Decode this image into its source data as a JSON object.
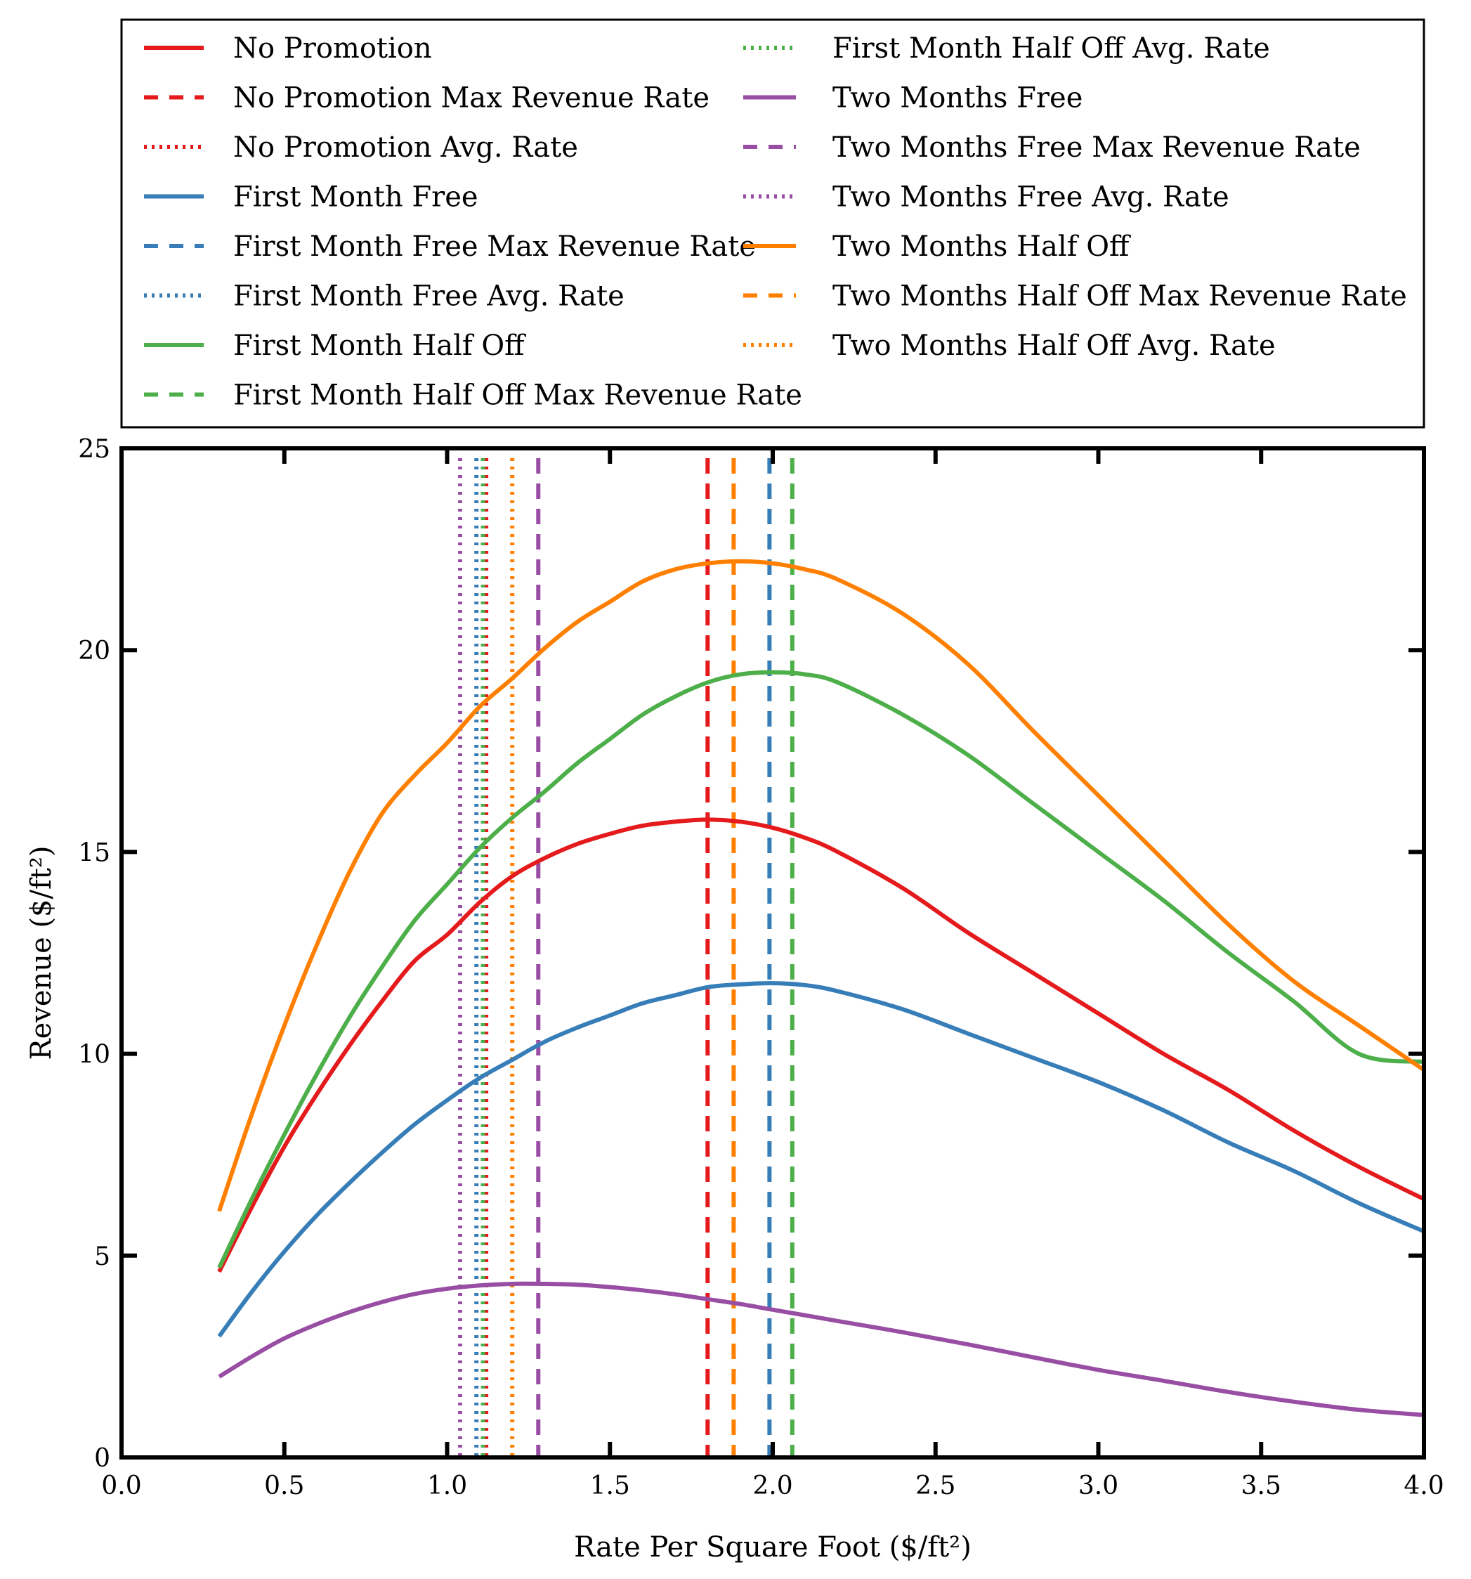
{
  "chart_data": {
    "type": "line",
    "title": "",
    "xlabel": "Rate Per Square Foot ($/ft²)",
    "ylabel": "Revenue ($/ft²)",
    "xlim": [
      0.0,
      4.0
    ],
    "ylim": [
      0,
      25
    ],
    "x_ticks": [
      "0.0",
      "0.5",
      "1.0",
      "1.5",
      "2.0",
      "2.5",
      "3.0",
      "3.5",
      "4.0"
    ],
    "y_ticks": [
      "0",
      "5",
      "10",
      "15",
      "20",
      "25"
    ],
    "grid": false,
    "legend_position": "top",
    "series": [
      {
        "name": "No Promotion",
        "color": "#e41a1c",
        "x": [
          0.3,
          0.4,
          0.5,
          0.6,
          0.7,
          0.8,
          0.9,
          1.0,
          1.1,
          1.2,
          1.3,
          1.4,
          1.5,
          1.6,
          1.7,
          1.8,
          1.9,
          2.0,
          2.1,
          2.2,
          2.4,
          2.6,
          2.8,
          3.0,
          3.2,
          3.4,
          3.6,
          3.8,
          4.0
        ],
        "y": [
          4.6,
          6.2,
          7.7,
          9.0,
          10.2,
          11.3,
          12.3,
          12.95,
          13.75,
          14.4,
          14.85,
          15.2,
          15.45,
          15.65,
          15.75,
          15.8,
          15.75,
          15.6,
          15.35,
          15.0,
          14.1,
          13.0,
          12.0,
          11.0,
          10.0,
          9.1,
          8.1,
          7.2,
          6.4
        ]
      },
      {
        "name": "No Promotion Max Revenue Rate",
        "color": "#e41a1c",
        "style": "dashed",
        "x": 1.8
      },
      {
        "name": "No Promotion Avg. Rate",
        "color": "#e41a1c",
        "style": "dotted",
        "x": 1.12
      },
      {
        "name": "First Month Free",
        "color": "#377eb8",
        "x": [
          0.3,
          0.4,
          0.5,
          0.6,
          0.7,
          0.8,
          0.9,
          1.0,
          1.1,
          1.2,
          1.3,
          1.4,
          1.5,
          1.6,
          1.7,
          1.8,
          1.9,
          2.0,
          2.1,
          2.2,
          2.4,
          2.6,
          2.8,
          3.0,
          3.2,
          3.4,
          3.6,
          3.8,
          4.0
        ],
        "y": [
          3.0,
          4.1,
          5.1,
          6.0,
          6.8,
          7.55,
          8.25,
          8.85,
          9.4,
          9.85,
          10.3,
          10.65,
          10.95,
          11.25,
          11.45,
          11.65,
          11.72,
          11.75,
          11.7,
          11.55,
          11.1,
          10.5,
          9.9,
          9.3,
          8.6,
          7.8,
          7.1,
          6.3,
          5.6
        ]
      },
      {
        "name": "First Month Free Max Revenue Rate",
        "color": "#377eb8",
        "style": "dashed",
        "x": 1.99
      },
      {
        "name": "First Month Free Avg. Rate",
        "color": "#377eb8",
        "style": "dotted",
        "x": 1.09
      },
      {
        "name": "First Month Half Off",
        "color": "#4daf4a",
        "x": [
          0.3,
          0.4,
          0.5,
          0.6,
          0.7,
          0.8,
          0.9,
          1.0,
          1.1,
          1.2,
          1.3,
          1.4,
          1.5,
          1.6,
          1.7,
          1.8,
          1.9,
          2.0,
          2.1,
          2.2,
          2.4,
          2.6,
          2.8,
          3.0,
          3.2,
          3.4,
          3.6,
          3.8,
          4.0
        ],
        "y": [
          4.7,
          6.4,
          8.0,
          9.5,
          10.9,
          12.15,
          13.3,
          14.2,
          15.1,
          15.85,
          16.5,
          17.2,
          17.8,
          18.4,
          18.85,
          19.2,
          19.4,
          19.45,
          19.4,
          19.2,
          18.4,
          17.4,
          16.2,
          15.0,
          13.8,
          12.5,
          11.3,
          10.0,
          9.8
        ]
      },
      {
        "name": "First Month Half Off Max Revenue Rate",
        "color": "#4daf4a",
        "style": "dashed",
        "x": 2.06
      },
      {
        "name": "First Month Half Off Avg. Rate",
        "color": "#4daf4a",
        "style": "dotted",
        "x": 1.11
      },
      {
        "name": "Two Months Free",
        "color": "#984ea3",
        "x": [
          0.3,
          0.4,
          0.5,
          0.6,
          0.7,
          0.8,
          0.9,
          1.0,
          1.1,
          1.2,
          1.3,
          1.4,
          1.5,
          1.6,
          1.7,
          1.8,
          1.9,
          2.0,
          2.1,
          2.2,
          2.4,
          2.6,
          2.8,
          3.0,
          3.2,
          3.4,
          3.6,
          3.8,
          4.0
        ],
        "y": [
          2.0,
          2.5,
          2.95,
          3.3,
          3.6,
          3.85,
          4.05,
          4.18,
          4.26,
          4.3,
          4.3,
          4.28,
          4.22,
          4.14,
          4.04,
          3.92,
          3.8,
          3.66,
          3.52,
          3.38,
          3.1,
          2.8,
          2.48,
          2.17,
          1.9,
          1.62,
          1.38,
          1.18,
          1.05
        ]
      },
      {
        "name": "Two Months Free Max Revenue Rate",
        "color": "#984ea3",
        "style": "dashed",
        "x": 1.28
      },
      {
        "name": "Two Months Free Avg. Rate",
        "color": "#984ea3",
        "style": "dotted",
        "x": 1.04
      },
      {
        "name": "Two Months Half Off",
        "color": "#ff7f00",
        "x": [
          0.3,
          0.4,
          0.5,
          0.6,
          0.7,
          0.8,
          0.9,
          1.0,
          1.1,
          1.2,
          1.3,
          1.4,
          1.5,
          1.6,
          1.7,
          1.8,
          1.9,
          2.0,
          2.1,
          2.2,
          2.4,
          2.6,
          2.8,
          3.0,
          3.2,
          3.4,
          3.6,
          3.8,
          4.0
        ],
        "y": [
          6.1,
          8.5,
          10.7,
          12.7,
          14.5,
          15.95,
          16.9,
          17.7,
          18.6,
          19.3,
          20.05,
          20.7,
          21.2,
          21.7,
          22.0,
          22.15,
          22.2,
          22.15,
          22.0,
          21.75,
          20.9,
          19.65,
          18.0,
          16.4,
          14.8,
          13.2,
          11.8,
          10.7,
          9.6
        ]
      },
      {
        "name": "Two Months Half Off Max Revenue Rate",
        "color": "#ff7f00",
        "style": "dashed",
        "x": 1.88
      },
      {
        "name": "Two Months Half Off Avg. Rate",
        "color": "#ff7f00",
        "style": "dotted",
        "x": 1.2
      }
    ]
  }
}
